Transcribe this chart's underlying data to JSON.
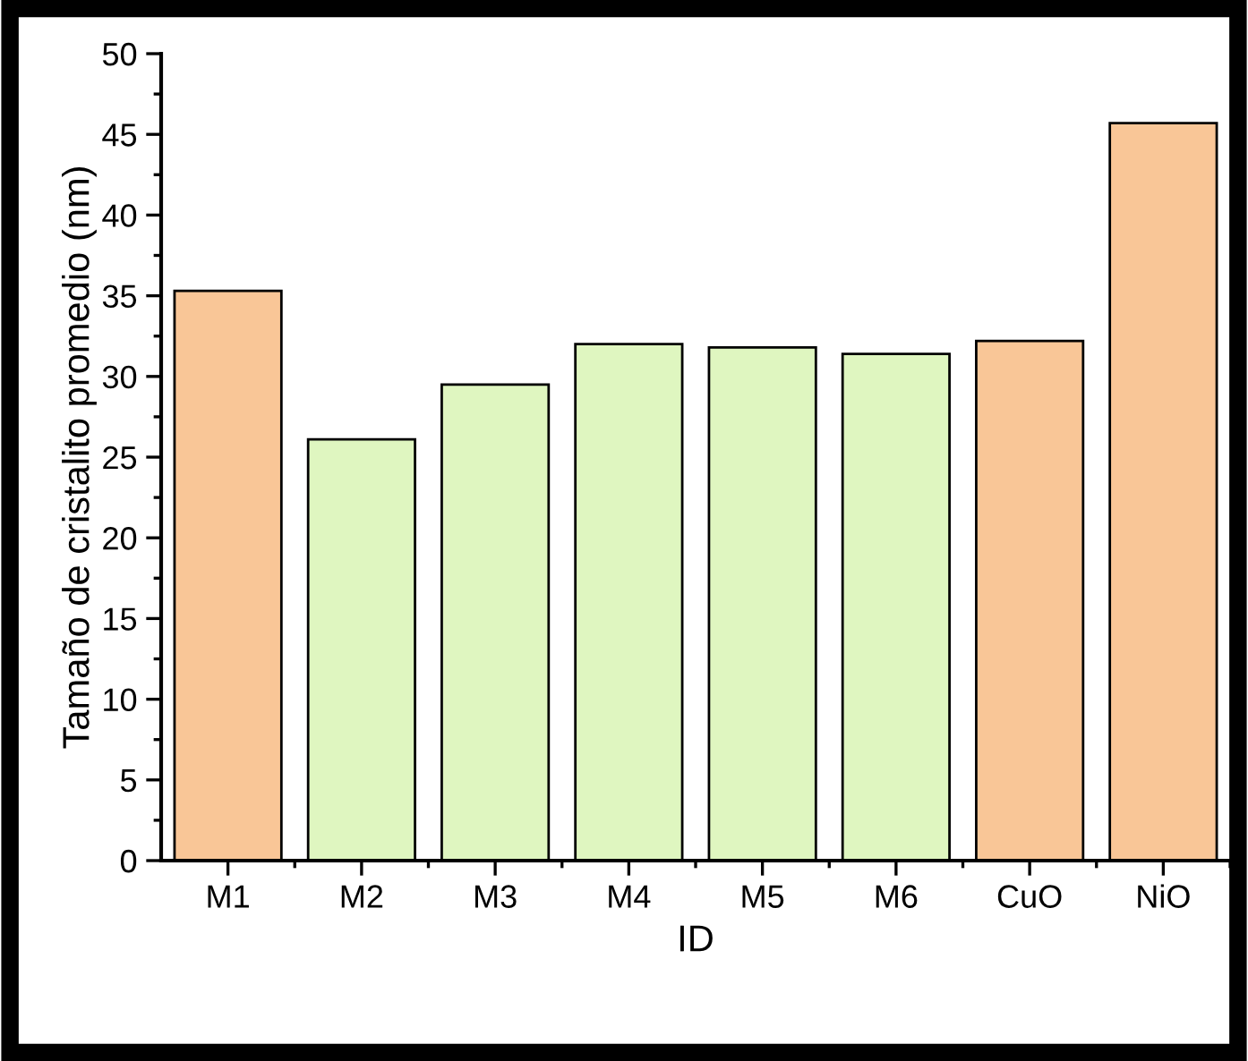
{
  "chart_data": {
    "type": "bar",
    "xlabel": "ID",
    "ylabel": "Tamaño de cristalito promedio (nm)",
    "categories": [
      "M1",
      "M2",
      "M3",
      "M4",
      "M5",
      "M6",
      "CuO",
      "NiO"
    ],
    "values": [
      35.3,
      26.1,
      29.5,
      32.0,
      31.8,
      31.4,
      32.2,
      45.7
    ],
    "colors": [
      "#f9c697",
      "#dff6c0",
      "#dff6c0",
      "#dff6c0",
      "#dff6c0",
      "#dff6c0",
      "#f9c697",
      "#f9c697"
    ],
    "ylim": [
      0,
      50
    ],
    "yticks": [
      0,
      5,
      10,
      15,
      20,
      25,
      30,
      35,
      40,
      45,
      50
    ],
    "grid": false,
    "legend": false
  }
}
